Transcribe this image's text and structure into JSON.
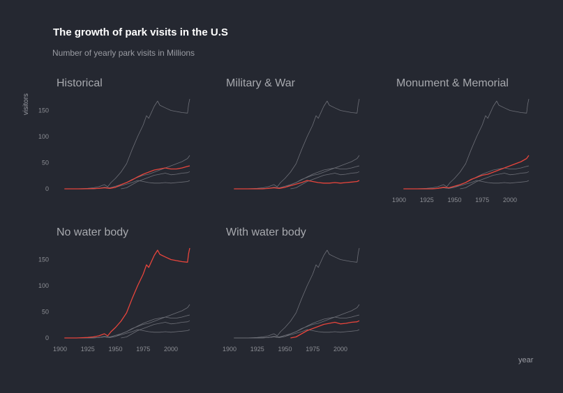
{
  "header": {
    "title": "The growth of park visits in the U.S",
    "subtitle": "Number of yearly park visits in Millions"
  },
  "chart_data": {
    "type": "line",
    "title": "The growth of park visits in the U.S",
    "subtitle": "Number of yearly park visits in Millions",
    "xlabel": "year",
    "ylabel": "visitors",
    "xlim": [
      1900,
      2017
    ],
    "ylim": [
      0,
      180
    ],
    "x_ticks": [
      1900,
      1925,
      1950,
      1975,
      2000
    ],
    "y_ticks": [
      0,
      50,
      100,
      150
    ],
    "grid": false,
    "colors": {
      "highlight": "#e8453c",
      "context": "#6e7078",
      "background": "#252831"
    },
    "panels": [
      {
        "title": "Historical",
        "highlight": "Historical"
      },
      {
        "title": "Military & War",
        "highlight": "Military & War"
      },
      {
        "title": "Monument & Memorial",
        "highlight": "Monument & Memorial"
      },
      {
        "title": "No water body",
        "highlight": "No water body"
      },
      {
        "title": "With water body",
        "highlight": "With water body"
      }
    ],
    "series": [
      {
        "name": "Historical",
        "points": [
          [
            1904,
            0
          ],
          [
            1920,
            0
          ],
          [
            1930,
            0.5
          ],
          [
            1935,
            1
          ],
          [
            1940,
            2
          ],
          [
            1945,
            1
          ],
          [
            1950,
            3
          ],
          [
            1955,
            8
          ],
          [
            1960,
            12
          ],
          [
            1965,
            17
          ],
          [
            1970,
            23
          ],
          [
            1975,
            28
          ],
          [
            1980,
            32
          ],
          [
            1985,
            36
          ],
          [
            1990,
            38
          ],
          [
            1995,
            40
          ],
          [
            2000,
            38
          ],
          [
            2005,
            38
          ],
          [
            2010,
            40
          ],
          [
            2015,
            43
          ],
          [
            2017,
            44
          ]
        ]
      },
      {
        "name": "Military & War",
        "points": [
          [
            1904,
            0
          ],
          [
            1930,
            0
          ],
          [
            1935,
            1
          ],
          [
            1940,
            2
          ],
          [
            1945,
            1
          ],
          [
            1950,
            3
          ],
          [
            1955,
            6
          ],
          [
            1960,
            9
          ],
          [
            1965,
            12
          ],
          [
            1970,
            16
          ],
          [
            1975,
            14
          ],
          [
            1980,
            12
          ],
          [
            1985,
            11
          ],
          [
            1990,
            11
          ],
          [
            1995,
            12
          ],
          [
            2000,
            11
          ],
          [
            2005,
            12
          ],
          [
            2010,
            13
          ],
          [
            2015,
            14
          ],
          [
            2017,
            16
          ]
        ]
      },
      {
        "name": "Monument & Memorial",
        "points": [
          [
            1904,
            0
          ],
          [
            1930,
            0
          ],
          [
            1935,
            1
          ],
          [
            1940,
            3
          ],
          [
            1945,
            2
          ],
          [
            1950,
            5
          ],
          [
            1955,
            8
          ],
          [
            1960,
            12
          ],
          [
            1965,
            18
          ],
          [
            1970,
            22
          ],
          [
            1975,
            26
          ],
          [
            1980,
            28
          ],
          [
            1985,
            32
          ],
          [
            1990,
            36
          ],
          [
            1995,
            40
          ],
          [
            2000,
            44
          ],
          [
            2005,
            48
          ],
          [
            2010,
            52
          ],
          [
            2015,
            58
          ],
          [
            2017,
            64
          ]
        ]
      },
      {
        "name": "No water body",
        "points": [
          [
            1904,
            0
          ],
          [
            1915,
            0
          ],
          [
            1920,
            0.5
          ],
          [
            1925,
            1
          ],
          [
            1930,
            2
          ],
          [
            1935,
            4
          ],
          [
            1940,
            8
          ],
          [
            1943,
            4
          ],
          [
            1946,
            12
          ],
          [
            1950,
            20
          ],
          [
            1955,
            32
          ],
          [
            1960,
            48
          ],
          [
            1965,
            75
          ],
          [
            1970,
            100
          ],
          [
            1975,
            122
          ],
          [
            1978,
            140
          ],
          [
            1980,
            135
          ],
          [
            1985,
            158
          ],
          [
            1988,
            168
          ],
          [
            1990,
            160
          ],
          [
            1995,
            155
          ],
          [
            2000,
            150
          ],
          [
            2005,
            148
          ],
          [
            2010,
            146
          ],
          [
            2015,
            145
          ],
          [
            2016,
            162
          ],
          [
            2017,
            172
          ]
        ]
      },
      {
        "name": "With water body",
        "points": [
          [
            1955,
            0
          ],
          [
            1960,
            2
          ],
          [
            1965,
            8
          ],
          [
            1970,
            14
          ],
          [
            1975,
            18
          ],
          [
            1980,
            22
          ],
          [
            1985,
            26
          ],
          [
            1990,
            28
          ],
          [
            1995,
            30
          ],
          [
            2000,
            27
          ],
          [
            2005,
            28
          ],
          [
            2010,
            30
          ],
          [
            2015,
            31
          ],
          [
            2017,
            33
          ]
        ]
      }
    ]
  }
}
